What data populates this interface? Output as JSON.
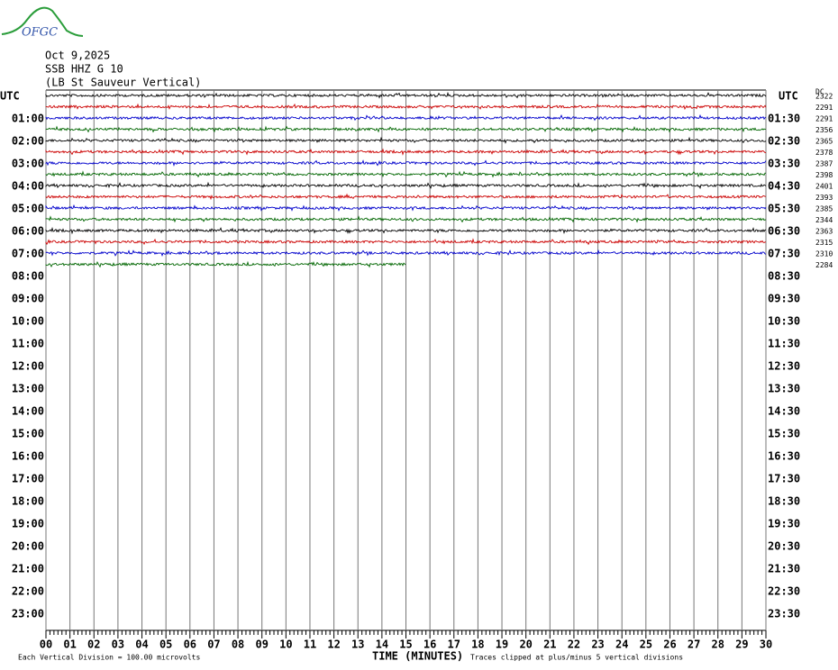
{
  "logo": "OFGC",
  "chart_data": {
    "type": "helicorder",
    "title_lines": [
      "Oct 9,2025",
      "SSB HHZ G 10",
      "(LB St Sauveur Vertical)"
    ],
    "left_axis_label": "UTC",
    "right_axis_label": "UTC",
    "offset_header": "DC",
    "left_labels": [
      "01:00",
      "02:00",
      "03:00",
      "04:00",
      "05:00",
      "06:00",
      "07:00",
      "08:00",
      "09:00",
      "10:00",
      "11:00",
      "12:00",
      "13:00",
      "14:00",
      "15:00",
      "16:00",
      "17:00",
      "18:00",
      "19:00",
      "20:00",
      "21:00",
      "22:00",
      "23:00"
    ],
    "right_labels": [
      "01:30",
      "02:30",
      "03:30",
      "04:30",
      "05:30",
      "06:30",
      "07:30",
      "08:30",
      "09:30",
      "10:30",
      "11:30",
      "12:30",
      "13:30",
      "14:30",
      "15:30",
      "16:30",
      "17:30",
      "18:30",
      "19:30",
      "20:30",
      "21:30",
      "22:30",
      "23:30"
    ],
    "row_offsets": [
      2322,
      2291,
      2291,
      2356,
      2365,
      2378,
      2387,
      2398,
      2401,
      2393,
      2385,
      2344,
      2363,
      2315,
      2310,
      2284
    ],
    "trace_colors": [
      "#000000",
      "#cc0000",
      "#0000cc",
      "#006600"
    ],
    "data_end_minute": 15,
    "xlim": [
      0,
      30
    ],
    "xticks": [
      {
        "value": 0,
        "label": "00"
      },
      {
        "value": 1,
        "label": "01"
      },
      {
        "value": 2,
        "label": "02"
      },
      {
        "value": 3,
        "label": "03"
      },
      {
        "value": 4,
        "label": "04"
      },
      {
        "value": 5,
        "label": "05"
      },
      {
        "value": 6,
        "label": "06"
      },
      {
        "value": 7,
        "label": "07"
      },
      {
        "value": 8,
        "label": "08"
      },
      {
        "value": 9,
        "label": "09"
      },
      10,
      11,
      12,
      13,
      14,
      15,
      16,
      17,
      18,
      19,
      20,
      21,
      22,
      23,
      24,
      25,
      26,
      27,
      28,
      29,
      30
    ],
    "xlabel": "TIME (MINUTES)",
    "scale_note": "Each Vertical Division =  100.00 microvolts",
    "clip_note": "Traces clipped at plus/minus 5 vertical divisions"
  }
}
